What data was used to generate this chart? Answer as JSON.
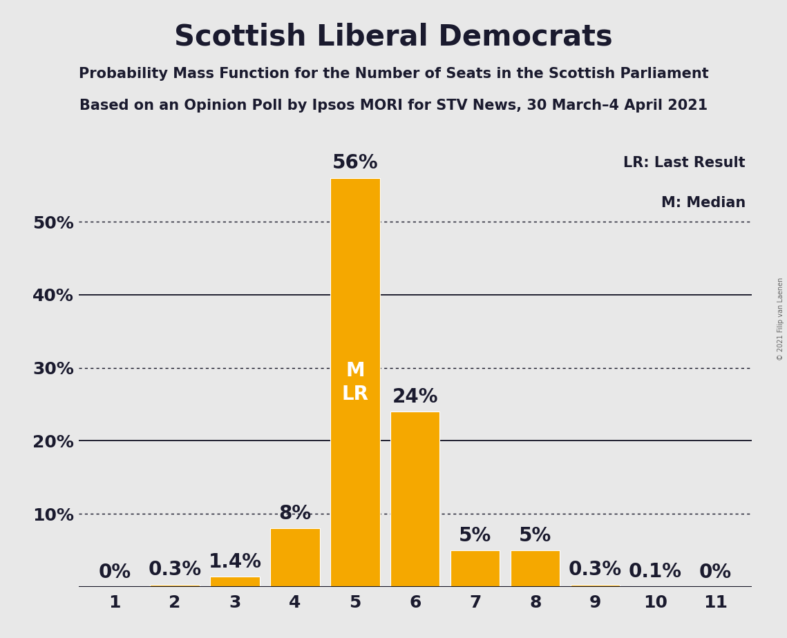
{
  "title": "Scottish Liberal Democrats",
  "subtitle1": "Probability Mass Function for the Number of Seats in the Scottish Parliament",
  "subtitle2": "Based on an Opinion Poll by Ipsos MORI for STV News, 30 March–4 April 2021",
  "copyright": "© 2021 Filip van Laenen",
  "categories": [
    1,
    2,
    3,
    4,
    5,
    6,
    7,
    8,
    9,
    10,
    11
  ],
  "values": [
    0.0,
    0.3,
    1.4,
    8.0,
    56.0,
    24.0,
    5.0,
    5.0,
    0.3,
    0.1,
    0.0
  ],
  "labels": [
    "0%",
    "0.3%",
    "1.4%",
    "8%",
    "56%",
    "24%",
    "5%",
    "5%",
    "0.3%",
    "0.1%",
    "0%"
  ],
  "bar_color": "#F5A800",
  "background_color": "#E8E8E8",
  "text_color": "#1a1a2e",
  "ytick_values": [
    0,
    10,
    20,
    30,
    40,
    50
  ],
  "ytick_labels": [
    "",
    "10%",
    "20%",
    "30%",
    "40%",
    "50%"
  ],
  "ylim": [
    0,
    62
  ],
  "solid_lines": [
    20,
    40
  ],
  "dotted_lines": [
    10,
    30,
    50
  ],
  "median_seat": 5,
  "lr_seat": 5,
  "legend_lr": "LR: Last Result",
  "legend_m": "M: Median",
  "title_fontsize": 30,
  "subtitle_fontsize": 15,
  "tick_fontsize": 18,
  "legend_fontsize": 15,
  "annotation_fontsize": 20,
  "mlr_fontsize": 20,
  "copyright_fontsize": 7,
  "bar_width": 0.82
}
